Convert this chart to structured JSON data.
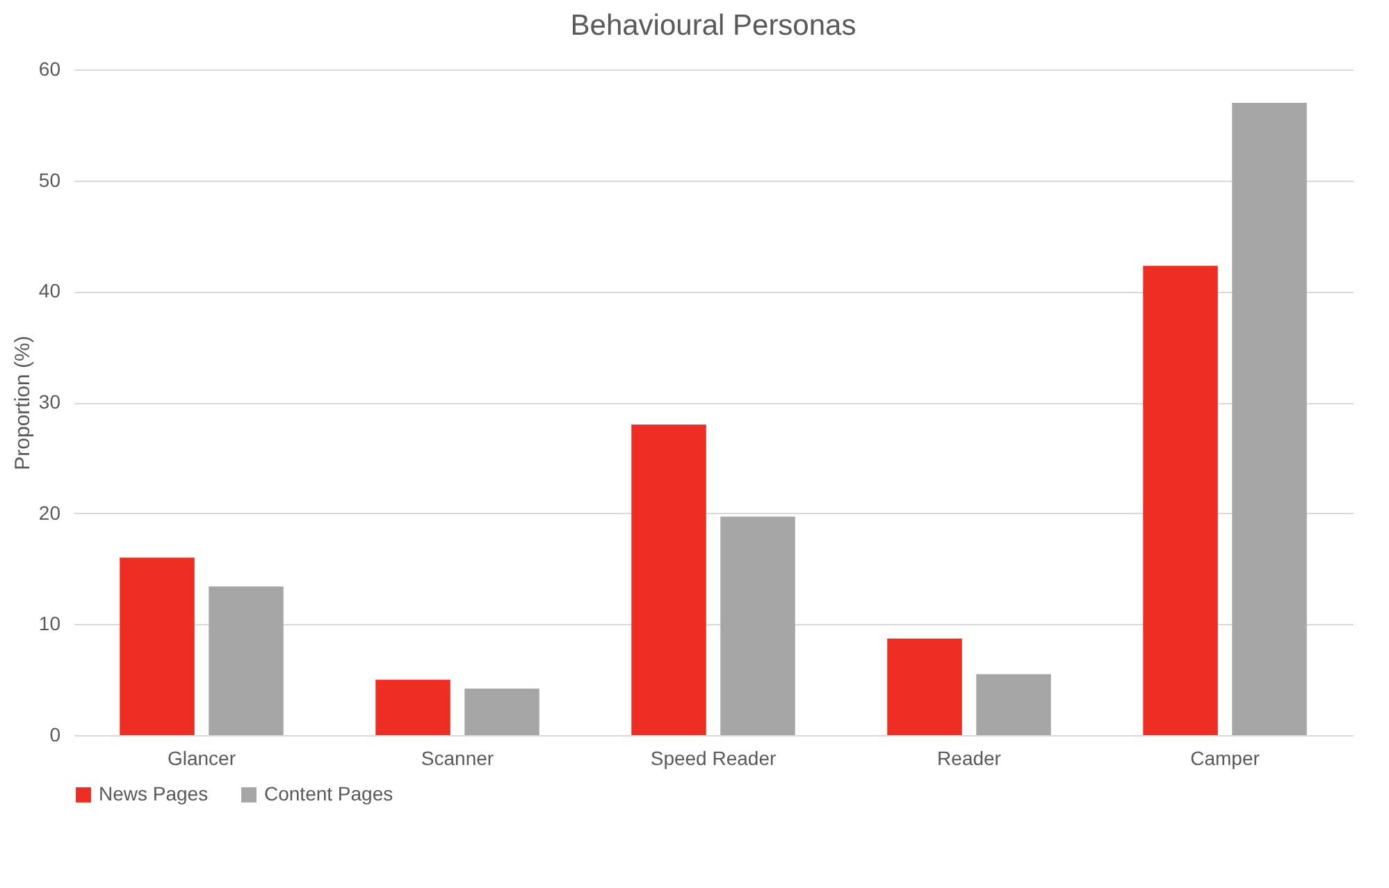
{
  "chart_data": {
    "type": "bar",
    "title": "Behavioural Personas",
    "ylabel": "Proportion (%)",
    "categories": [
      "Glancer",
      "Scanner",
      "Speed Reader",
      "Reader",
      "Camper"
    ],
    "series": [
      {
        "name": "News Pages",
        "color": "#ee2e24",
        "values": [
          16.0,
          5.0,
          28.0,
          8.7,
          42.3
        ]
      },
      {
        "name": "Content Pages",
        "color": "#a6a6a6",
        "values": [
          13.4,
          4.2,
          19.7,
          5.5,
          57.0
        ]
      }
    ],
    "ylim": [
      0,
      60
    ],
    "yticks": [
      0,
      10,
      20,
      30,
      40,
      50,
      60
    ],
    "grid": "y",
    "legend": "bottom"
  }
}
